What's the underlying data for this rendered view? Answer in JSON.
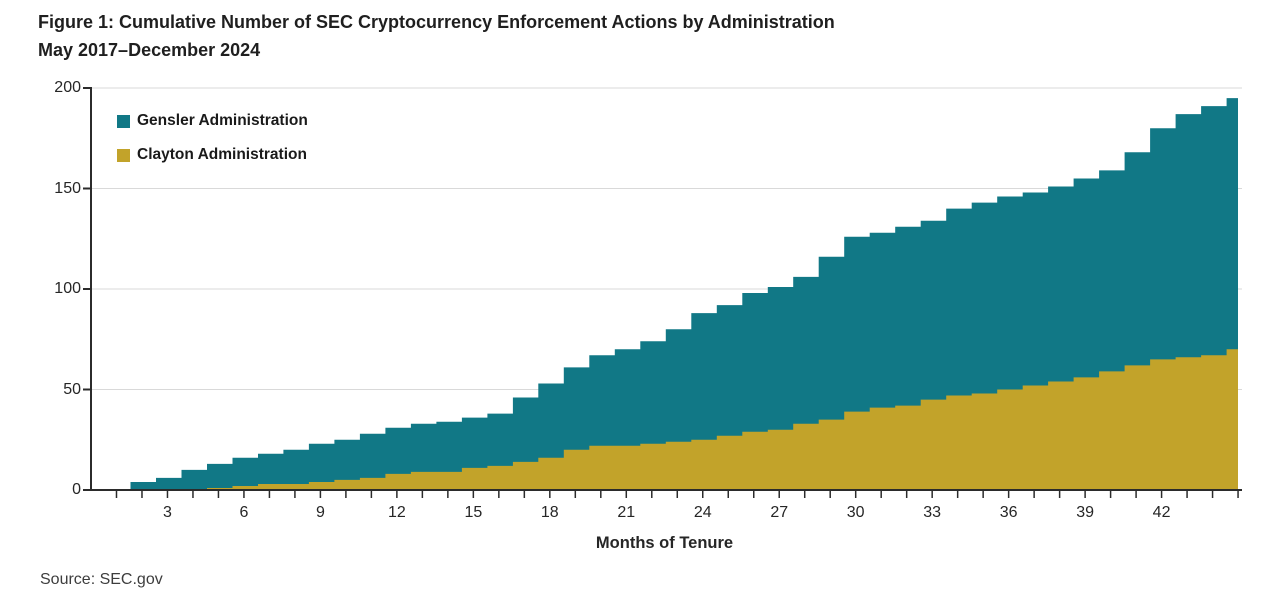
{
  "title": {
    "line1": "Figure 1: Cumulative Number of SEC Cryptocurrency Enforcement Actions by Administration",
    "line2": "May 2017–December 2024"
  },
  "source_note": "Source: SEC.gov",
  "colors": {
    "gensler_teal": "#117886",
    "clayton_gold": "#C2A32A",
    "gridline": "#D9D9D9",
    "axis": "#2B2B2B",
    "tick_text": "#262626"
  },
  "chart_data": {
    "type": "area",
    "stacking": "stacked",
    "interpolation": "step",
    "title": "Figure 1: Cumulative Number of SEC Cryptocurrency Enforcement Actions by Administration May 2017–December 2024",
    "xlabel": "Months of Tenure",
    "ylabel": "",
    "xlim": [
      0,
      45
    ],
    "ylim": [
      0,
      200
    ],
    "grid": "horizontal",
    "legend_position": "top-left-inside",
    "x_tick_labels": [
      3,
      6,
      9,
      12,
      15,
      18,
      21,
      24,
      27,
      30,
      33,
      36,
      39,
      42
    ],
    "y_tick_labels": [
      0,
      50,
      100,
      150,
      200
    ],
    "months": [
      1,
      2,
      3,
      4,
      5,
      6,
      7,
      8,
      9,
      10,
      11,
      12,
      13,
      14,
      15,
      16,
      17,
      18,
      19,
      20,
      21,
      22,
      23,
      24,
      25,
      26,
      27,
      28,
      29,
      30,
      31,
      32,
      33,
      34,
      35,
      36,
      37,
      38,
      39,
      40,
      41,
      42,
      43,
      44,
      45
    ],
    "series": [
      {
        "name": "Gensler Administration",
        "color": "#117886",
        "role": "stacked-on-top",
        "values": [
          0,
          4,
          6,
          10,
          12,
          14,
          15,
          17,
          19,
          20,
          22,
          23,
          24,
          25,
          25,
          26,
          32,
          37,
          41,
          45,
          48,
          51,
          56,
          63,
          65,
          69,
          71,
          73,
          81,
          87,
          87,
          89,
          89,
          93,
          95,
          96,
          96,
          97,
          99,
          100,
          106,
          115,
          121,
          124,
          125
        ]
      },
      {
        "name": "Clayton Administration",
        "color": "#C2A32A",
        "role": "stacked-bottom",
        "values": [
          0,
          0,
          0,
          0,
          1,
          2,
          3,
          3,
          4,
          5,
          6,
          8,
          9,
          9,
          11,
          12,
          14,
          16,
          20,
          22,
          22,
          23,
          24,
          25,
          27,
          29,
          30,
          33,
          35,
          39,
          41,
          42,
          45,
          47,
          48,
          50,
          52,
          54,
          56,
          59,
          62,
          65,
          66,
          67,
          70
        ]
      }
    ]
  }
}
